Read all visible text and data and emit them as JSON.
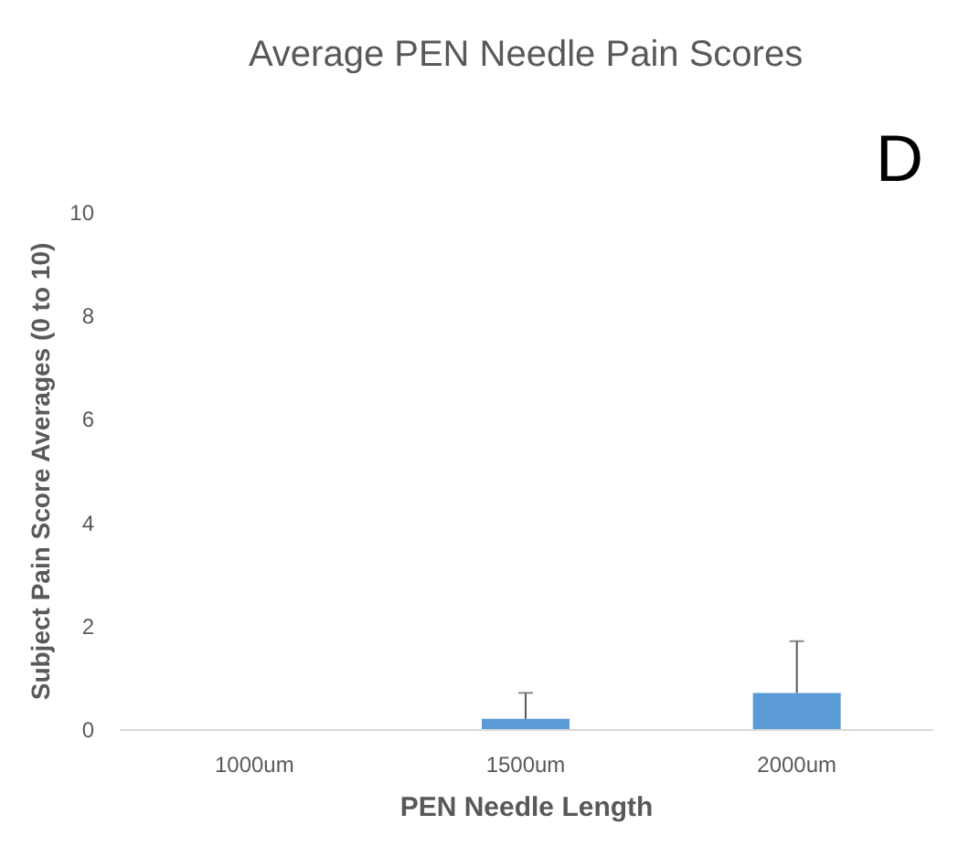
{
  "chart_data": {
    "type": "bar",
    "title": "Average PEN Needle Pain Scores",
    "xlabel": "PEN Needle Length",
    "ylabel": "Subject Pain Score Averages (0 to 10)",
    "categories": [
      "1000um",
      "1500um",
      "2000um"
    ],
    "values": [
      0,
      0.2,
      0.7
    ],
    "errors": [
      null,
      [
        0.2,
        0.7
      ],
      [
        0.7,
        1.7
      ]
    ],
    "color": "#5b9bd5",
    "ylim": [
      0,
      10
    ],
    "yticks": [
      0,
      2,
      4,
      6,
      8,
      10
    ],
    "grid": false,
    "annotations": [
      "D"
    ]
  }
}
